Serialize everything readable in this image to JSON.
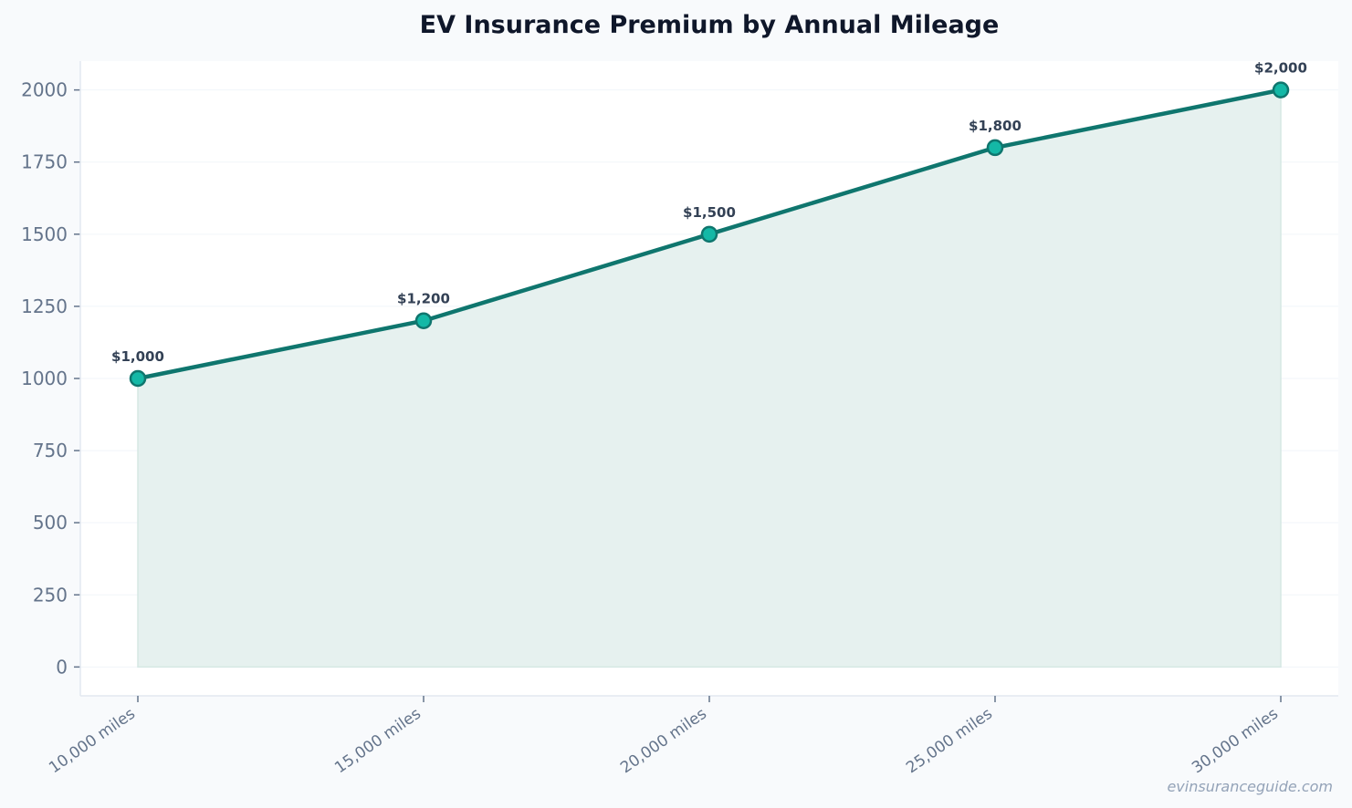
{
  "chart_data": {
    "type": "line",
    "title": "EV Insurance Premium by Annual Mileage",
    "xlabel": "",
    "ylabel": "",
    "categories": [
      "10,000 miles",
      "15,000 miles",
      "20,000 miles",
      "25,000 miles",
      "30,000 miles"
    ],
    "values": [
      1000,
      1200,
      1500,
      1800,
      2000
    ],
    "data_labels": [
      "$1,000",
      "$1,200",
      "$1,500",
      "$1,800",
      "$2,000"
    ],
    "ylim": [
      -100,
      2100
    ],
    "yticks": [
      0,
      250,
      500,
      750,
      1000,
      1250,
      1500,
      1750,
      2000
    ],
    "grid": "horizontal",
    "area_fill": true,
    "legend": "none",
    "colors": {
      "line": "#0f766e",
      "marker": "#14b8a6",
      "fill": "#e6f1ef",
      "text": "#64748b",
      "label": "#334155",
      "title": "#0f172a"
    },
    "watermark": "evinsuranceguide.com"
  }
}
